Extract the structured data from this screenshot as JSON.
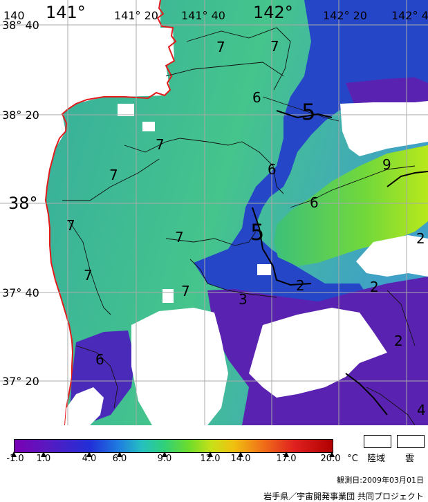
{
  "map": {
    "lon_labels": [
      "140",
      "141°",
      "141° 20",
      "141° 40",
      "142°",
      "142° 20",
      "142° 4"
    ],
    "lat_labels": [
      "38° 40",
      "38° 20",
      "38°",
      "37° 40",
      "37° 20"
    ],
    "contour_labels": [
      "7",
      "7",
      "6",
      "5",
      "7",
      "6",
      "7",
      "6",
      "9",
      "7",
      "5",
      "7",
      "7",
      "2",
      "3",
      "2",
      "6",
      "2",
      "4",
      "2"
    ]
  },
  "colorbar": {
    "unit": "°C",
    "ticks": [
      "-1.0",
      "1.0",
      "4.0",
      "6.0",
      "9.0",
      "12.0",
      "14.0",
      "17.0",
      "20.0"
    ],
    "min": -1.0,
    "max": 20.0
  },
  "legend": {
    "land": "陸域",
    "cloud": "雲"
  },
  "footer": {
    "date": "観測日:2009年03月01日",
    "credit": "岩手県／宇宙開発事業団  共同プロジェクト"
  },
  "colors": {
    "sea_teal": "#3cb6a2",
    "sea_green": "#46c88a",
    "coast": "#e31a1c",
    "deep_blue": "#1a1ab4",
    "purple": "#6a1fb0",
    "cloud": "#ffffff"
  }
}
